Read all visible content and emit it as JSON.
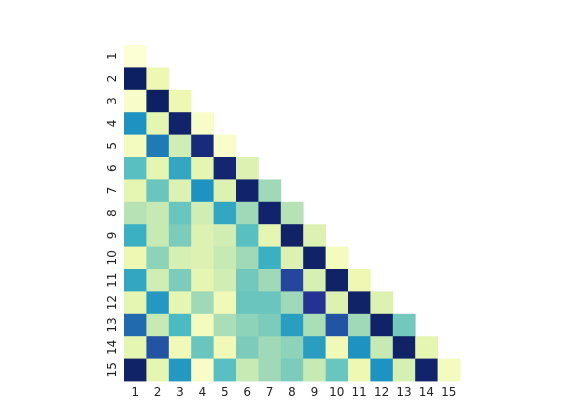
{
  "chart_data": {
    "type": "heatmap",
    "layout": "lower-triangle",
    "x_tick_labels": [
      "1",
      "2",
      "3",
      "4",
      "5",
      "6",
      "7",
      "8",
      "9",
      "10",
      "11",
      "12",
      "13",
      "14",
      "15"
    ],
    "y_tick_labels": [
      "1",
      "2",
      "3",
      "4",
      "5",
      "6",
      "7",
      "8",
      "9",
      "10",
      "11",
      "12",
      "13",
      "14",
      "15"
    ],
    "y_tick_rotation": "vertical",
    "colormap": "YlGnBu",
    "value_range": [
      0,
      1
    ],
    "colorbar": false,
    "title": "",
    "xlabel": "",
    "ylabel": "",
    "values": [
      [
        0.02
      ],
      [
        0.98,
        0.12
      ],
      [
        0.05,
        0.98,
        0.12
      ],
      [
        0.62,
        0.15,
        0.96,
        0.05
      ],
      [
        0.08,
        0.68,
        0.22,
        0.93,
        0.04
      ],
      [
        0.45,
        0.15,
        0.55,
        0.15,
        0.95,
        0.18
      ],
      [
        0.15,
        0.42,
        0.18,
        0.62,
        0.18,
        0.96,
        0.32
      ],
      [
        0.28,
        0.25,
        0.42,
        0.22,
        0.55,
        0.32,
        0.96,
        0.28
      ],
      [
        0.52,
        0.25,
        0.38,
        0.18,
        0.22,
        0.45,
        0.15,
        0.97,
        0.18
      ],
      [
        0.12,
        0.35,
        0.2,
        0.18,
        0.25,
        0.32,
        0.52,
        0.18,
        0.97,
        0.08
      ],
      [
        0.55,
        0.22,
        0.38,
        0.15,
        0.22,
        0.4,
        0.32,
        0.82,
        0.2,
        0.97,
        0.12
      ],
      [
        0.15,
        0.6,
        0.15,
        0.32,
        0.1,
        0.42,
        0.42,
        0.32,
        0.88,
        0.18,
        0.97,
        0.18
      ],
      [
        0.72,
        0.25,
        0.48,
        0.08,
        0.3,
        0.35,
        0.38,
        0.58,
        0.3,
        0.78,
        0.32,
        0.97,
        0.4
      ],
      [
        0.15,
        0.78,
        0.1,
        0.42,
        0.1,
        0.38,
        0.32,
        0.35,
        0.58,
        0.1,
        0.62,
        0.25,
        0.97,
        0.15
      ],
      [
        0.97,
        0.15,
        0.6,
        0.05,
        0.45,
        0.25,
        0.32,
        0.38,
        0.25,
        0.42,
        0.12,
        0.62,
        0.2,
        0.96,
        0.08
      ]
    ]
  }
}
